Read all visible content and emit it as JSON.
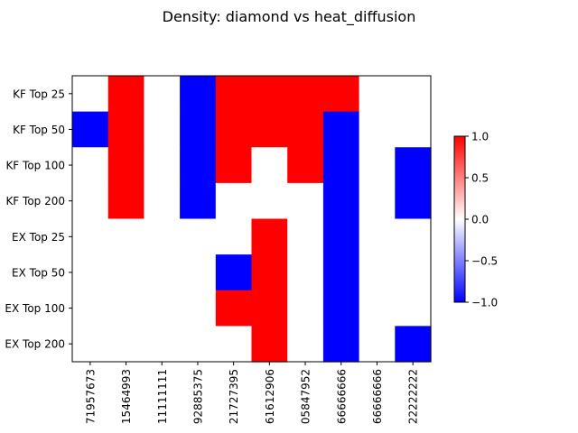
{
  "chart_data": {
    "type": "heatmap",
    "title": "Density: diamond vs heat_diffusion",
    "xlabel": "",
    "ylabel": "",
    "rows": [
      "KF Top 25",
      "KF Top 50",
      "KF Top 100",
      "KF Top 200",
      "EX Top 25",
      "EX Top 50",
      "EX Top 100",
      "EX Top 200"
    ],
    "columns": [
      "71957673",
      "15464993",
      "11111111",
      "92885375",
      "21727395",
      "61612906",
      "05847952",
      "66666666",
      "66666666",
      "22222222"
    ],
    "values": [
      [
        0,
        1,
        0,
        -1,
        1,
        1,
        1,
        1,
        0,
        0
      ],
      [
        -1,
        1,
        0,
        -1,
        1,
        1,
        1,
        -1,
        0,
        0
      ],
      [
        0,
        1,
        0,
        -1,
        1,
        0,
        1,
        -1,
        0,
        -1
      ],
      [
        0,
        1,
        0,
        -1,
        0,
        0,
        0,
        -1,
        0,
        -1
      ],
      [
        0,
        0,
        0,
        0,
        0,
        1,
        0,
        -1,
        0,
        0
      ],
      [
        0,
        0,
        0,
        0,
        -1,
        1,
        0,
        -1,
        0,
        0
      ],
      [
        0,
        0,
        0,
        0,
        1,
        1,
        0,
        -1,
        0,
        0
      ],
      [
        0,
        0,
        0,
        0,
        0,
        1,
        0,
        -1,
        0,
        -1
      ]
    ],
    "colorbar": {
      "range": [
        -1.0,
        1.0
      ],
      "ticks": [
        "1.0",
        "0.5",
        "0.0",
        "−0.5",
        "−1.0"
      ],
      "colormap": "bwr",
      "low_color": "#0000ff",
      "mid_color": "#ffffff",
      "high_color": "#ff0000"
    }
  }
}
